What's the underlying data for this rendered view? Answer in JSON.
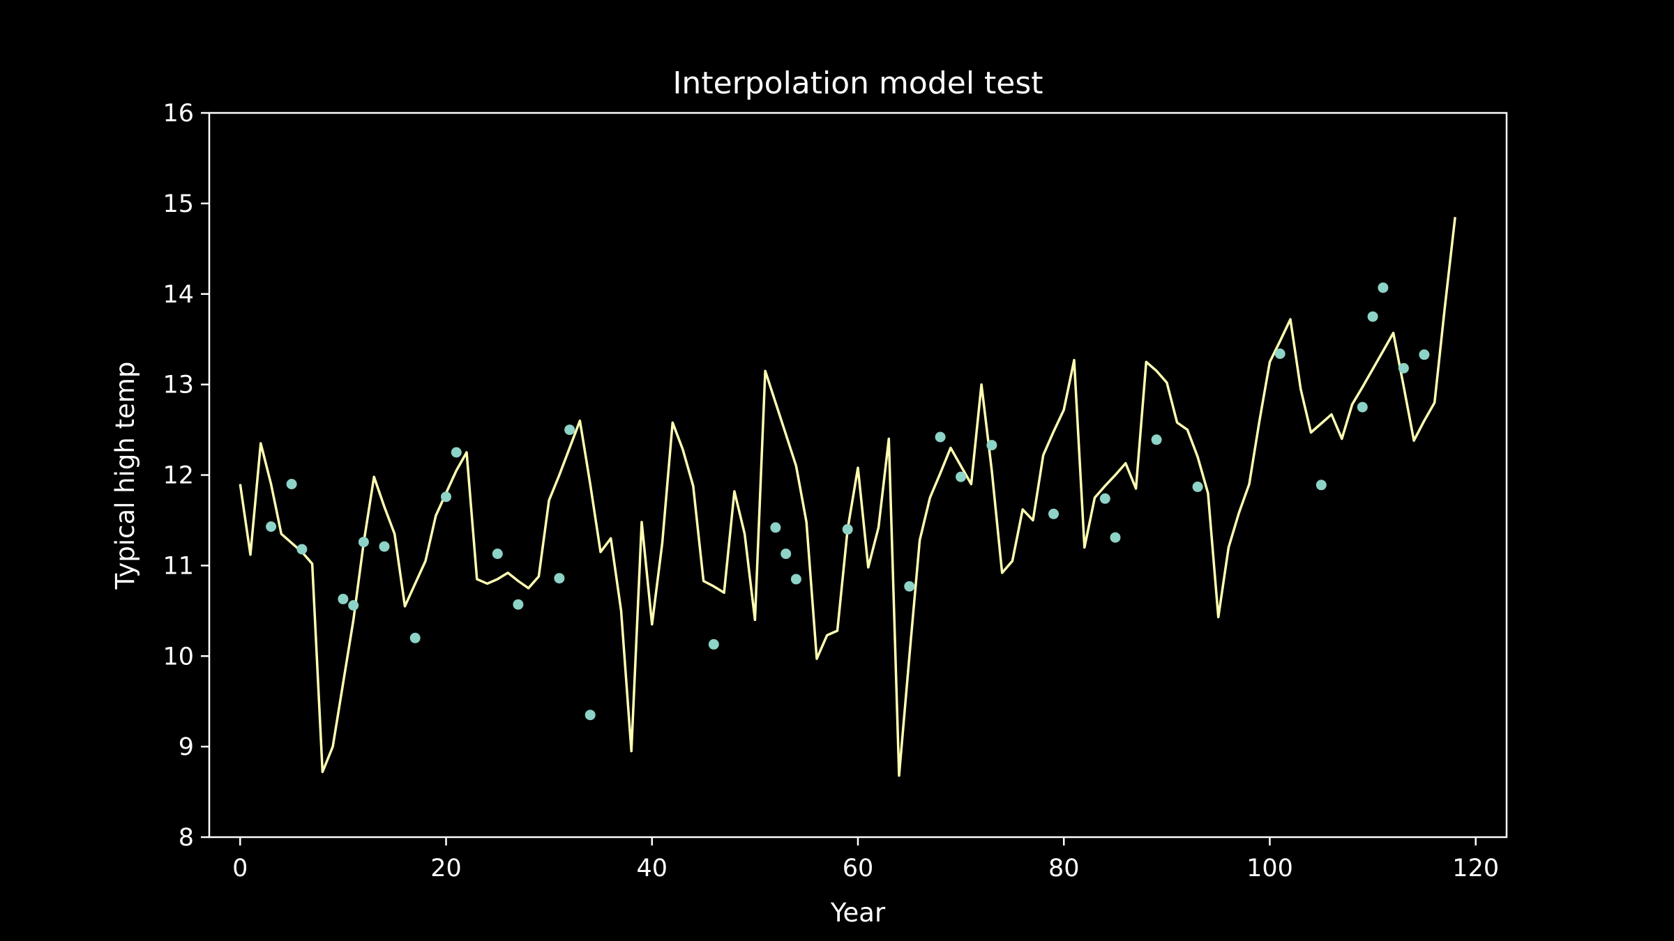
{
  "chart_data": {
    "type": "line",
    "title": "Interpolation model test",
    "xlabel": "Year",
    "ylabel": "Typical high temp",
    "xlim": [
      -3,
      123
    ],
    "ylim": [
      8,
      16
    ],
    "xticks": [
      0,
      20,
      40,
      60,
      80,
      100,
      120
    ],
    "yticks": [
      8,
      9,
      10,
      11,
      12,
      13,
      14,
      15,
      16
    ],
    "grid": false,
    "legend": "none",
    "colors": {
      "background": "#000000",
      "axes": "#ffffff",
      "line": "#ffffb3",
      "points": "#8dd3c7"
    },
    "series": [
      {
        "type": "line",
        "x": [
          0,
          1,
          2,
          3,
          4,
          5,
          6,
          7,
          8,
          9,
          10,
          11,
          12,
          13,
          14,
          15,
          16,
          17,
          18,
          19,
          20,
          21,
          22,
          23,
          24,
          25,
          26,
          27,
          28,
          29,
          30,
          31,
          32,
          33,
          34,
          35,
          36,
          37,
          38,
          39,
          40,
          41,
          42,
          43,
          44,
          45,
          46,
          47,
          48,
          49,
          50,
          51,
          52,
          53,
          54,
          55,
          56,
          57,
          58,
          59,
          60,
          61,
          62,
          63,
          64,
          65,
          66,
          67,
          68,
          69,
          70,
          71,
          72,
          73,
          74,
          75,
          76,
          77,
          78,
          79,
          80,
          81,
          82,
          83,
          84,
          85,
          86,
          87,
          88,
          89,
          90,
          91,
          92,
          93,
          94,
          95,
          96,
          97,
          98,
          99,
          100,
          101,
          102,
          103,
          104,
          105,
          106,
          107,
          108,
          109,
          110,
          111,
          112,
          113,
          114,
          115,
          116,
          117,
          118
        ],
        "y": [
          11.9,
          11.12,
          12.35,
          11.9,
          11.35,
          11.25,
          11.15,
          11.02,
          8.72,
          9.0,
          9.7,
          10.4,
          11.25,
          11.98,
          11.65,
          11.35,
          10.55,
          10.8,
          11.05,
          11.55,
          11.8,
          12.05,
          12.25,
          10.85,
          10.8,
          10.85,
          10.92,
          10.83,
          10.75,
          10.88,
          11.72,
          12.0,
          12.3,
          12.6,
          11.9,
          11.15,
          11.3,
          10.5,
          8.95,
          11.48,
          10.35,
          11.25,
          12.58,
          12.28,
          11.88,
          10.83,
          10.77,
          10.7,
          11.82,
          11.35,
          10.4,
          13.15,
          12.8,
          12.45,
          12.1,
          11.48,
          9.97,
          10.23,
          10.28,
          11.4,
          12.08,
          10.98,
          11.42,
          12.4,
          8.68,
          10.0,
          11.28,
          11.75,
          12.02,
          12.3,
          12.1,
          11.9,
          13.0,
          12.05,
          10.92,
          11.05,
          11.62,
          11.5,
          12.22,
          12.48,
          12.72,
          13.27,
          11.2,
          11.75,
          11.88,
          12.0,
          12.13,
          11.85,
          13.25,
          13.15,
          13.02,
          12.58,
          12.5,
          12.2,
          11.8,
          10.43,
          11.2,
          11.58,
          11.9,
          12.6,
          13.25,
          13.48,
          13.72,
          12.95,
          12.47,
          12.57,
          12.67,
          12.4,
          12.78,
          12.97,
          13.17,
          13.37,
          13.57,
          12.98,
          12.38,
          12.6,
          12.8,
          13.85,
          14.85
        ]
      },
      {
        "type": "scatter",
        "x": [
          3,
          5,
          6,
          10,
          11,
          12,
          14,
          17,
          20,
          21,
          25,
          27,
          31,
          32,
          34,
          46,
          52,
          53,
          54,
          59,
          65,
          68,
          70,
          73,
          79,
          84,
          85,
          89,
          93,
          101,
          105,
          109,
          110,
          111,
          113,
          115
        ],
        "y": [
          11.43,
          11.9,
          11.18,
          10.63,
          10.56,
          11.26,
          11.21,
          10.2,
          11.76,
          12.25,
          11.13,
          10.57,
          10.86,
          12.5,
          9.35,
          10.13,
          11.42,
          11.13,
          10.85,
          11.4,
          10.77,
          12.42,
          11.98,
          12.33,
          11.57,
          11.74,
          11.31,
          12.39,
          11.87,
          13.34,
          11.89,
          12.75,
          13.75,
          14.07,
          13.18,
          13.33
        ]
      }
    ]
  }
}
